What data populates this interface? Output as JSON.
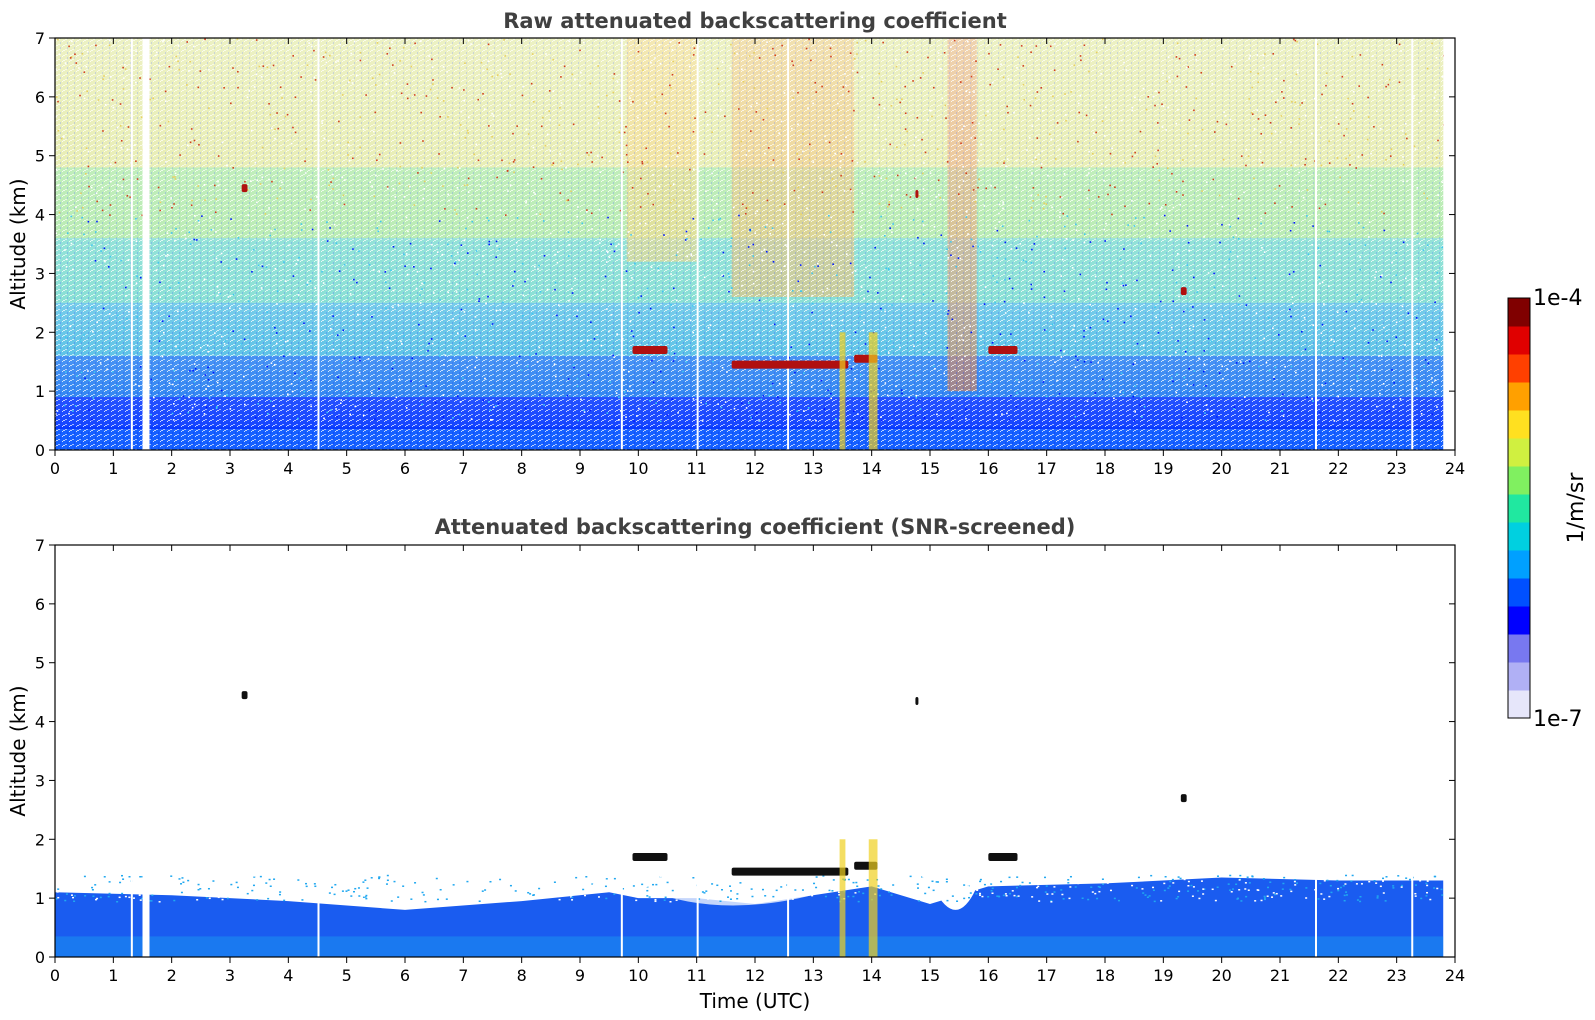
{
  "figure": {
    "colorbar": {
      "label": "1/m/sr",
      "max_label": "1e-4",
      "min_label": "1e-7",
      "colors": [
        "#e6e6fa",
        "#b0b0f5",
        "#7878f0",
        "#0000ff",
        "#0050ff",
        "#00a0ff",
        "#00d0e0",
        "#20e8a0",
        "#80f060",
        "#d0f040",
        "#ffe020",
        "#ffa000",
        "#ff4000",
        "#e00000",
        "#800000"
      ]
    },
    "shared_xlabel": "Time (UTC)"
  },
  "chart_data": [
    {
      "type": "heatmap",
      "title": "Raw attenuated backscattering coefficient",
      "xlabel": "",
      "ylabel": "Altitude (km)",
      "xlim": [
        0,
        24
      ],
      "ylim": [
        0,
        7
      ],
      "xticks": [
        "0",
        "1",
        "2",
        "3",
        "4",
        "5",
        "6",
        "7",
        "8",
        "9",
        "10",
        "11",
        "12",
        "13",
        "14",
        "15",
        "16",
        "17",
        "18",
        "19",
        "20",
        "21",
        "22",
        "23",
        "24"
      ],
      "yticks": [
        "0",
        "1",
        "2",
        "3",
        "4",
        "5",
        "6",
        "7"
      ],
      "data_end_hour": 23.8,
      "gaps_hours": [
        1.3,
        1.5,
        4.5,
        9.7,
        11.0,
        12.55,
        21.6,
        23.25
      ],
      "cloud_layers": [
        {
          "t0": 11.6,
          "t1": 13.6,
          "alt_km": 1.45
        },
        {
          "t0": 13.7,
          "t1": 14.1,
          "alt_km": 1.55
        },
        {
          "t0": 9.9,
          "t1": 10.5,
          "alt_km": 1.7
        },
        {
          "t0": 16.0,
          "t1": 16.5,
          "alt_km": 1.7
        },
        {
          "t0": 3.2,
          "t1": 3.3,
          "alt_km": 4.45
        },
        {
          "t0": 14.75,
          "t1": 14.8,
          "alt_km": 4.35
        },
        {
          "t0": 19.3,
          "t1": 19.4,
          "alt_km": 2.7
        }
      ]
    },
    {
      "type": "heatmap",
      "title": "Attenuated backscattering coefficient (SNR-screened)",
      "xlabel": "Time (UTC)",
      "ylabel": "Altitude (km)",
      "xlim": [
        0,
        24
      ],
      "ylim": [
        0,
        7
      ],
      "xticks": [
        "0",
        "1",
        "2",
        "3",
        "4",
        "5",
        "6",
        "7",
        "8",
        "9",
        "10",
        "11",
        "12",
        "13",
        "14",
        "15",
        "16",
        "17",
        "18",
        "19",
        "20",
        "21",
        "22",
        "23",
        "24"
      ],
      "yticks": [
        "0",
        "1",
        "2",
        "3",
        "4",
        "5",
        "6",
        "7"
      ],
      "boundary_layer_top_km": [
        [
          0,
          1.1
        ],
        [
          2,
          1.05
        ],
        [
          4,
          0.95
        ],
        [
          6,
          0.8
        ],
        [
          8,
          0.95
        ],
        [
          9.5,
          1.1
        ],
        [
          10,
          1.0
        ],
        [
          11,
          1.0
        ],
        [
          12,
          0.9
        ],
        [
          14,
          1.2
        ],
        [
          15,
          0.9
        ],
        [
          16,
          1.2
        ],
        [
          18,
          1.25
        ],
        [
          20,
          1.35
        ],
        [
          22,
          1.3
        ],
        [
          23.8,
          1.3
        ]
      ]
    }
  ]
}
